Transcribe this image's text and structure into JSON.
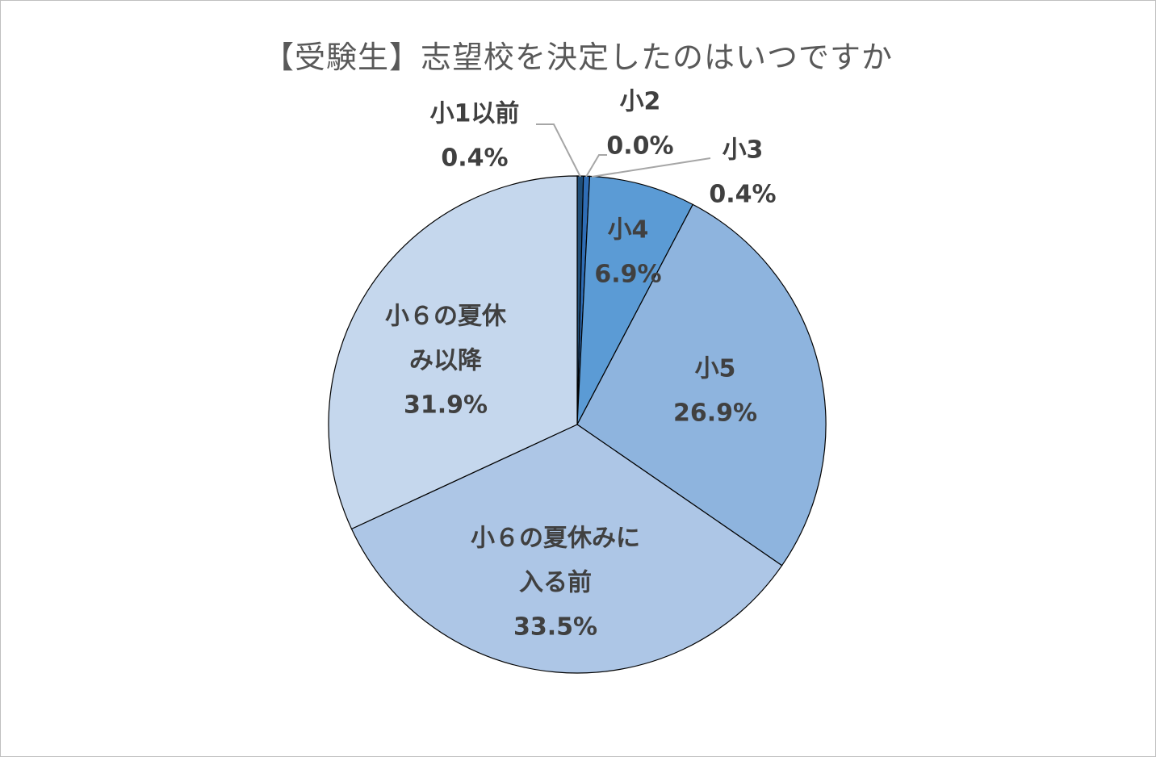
{
  "chart_data": {
    "type": "pie",
    "title": "【受験生】志望校を決定したのはいつですか",
    "slices": [
      {
        "label": "小1以前",
        "label_lines": [
          "小1以前"
        ],
        "value": 0.4,
        "value_text": "0.4%",
        "color": "#1f4e79"
      },
      {
        "label": "小2",
        "label_lines": [
          "小2"
        ],
        "value": 0.0,
        "value_text": "0.0%",
        "color": "#2e75b6"
      },
      {
        "label": "小3",
        "label_lines": [
          "小3"
        ],
        "value": 0.4,
        "value_text": "0.4%",
        "color": "#2f6db5"
      },
      {
        "label": "小4",
        "label_lines": [
          "小4"
        ],
        "value": 6.9,
        "value_text": "6.9%",
        "color": "#5b9bd5"
      },
      {
        "label": "小5",
        "label_lines": [
          "小5"
        ],
        "value": 26.9,
        "value_text": "26.9%",
        "color": "#8eb4de"
      },
      {
        "label": "小６の夏休みに入る前",
        "label_lines": [
          "小６の夏休みに",
          "入る前"
        ],
        "value": 33.5,
        "value_text": "33.5%",
        "color": "#adc6e6"
      },
      {
        "label": "小６の夏休み以降",
        "label_lines": [
          "小６の夏休",
          "み以降"
        ],
        "value": 31.9,
        "value_text": "31.9%",
        "color": "#c5d7ed"
      }
    ],
    "start_angle_deg": 0,
    "direction": "clockwise",
    "legend": "none",
    "slice_border_color": "#000000"
  }
}
